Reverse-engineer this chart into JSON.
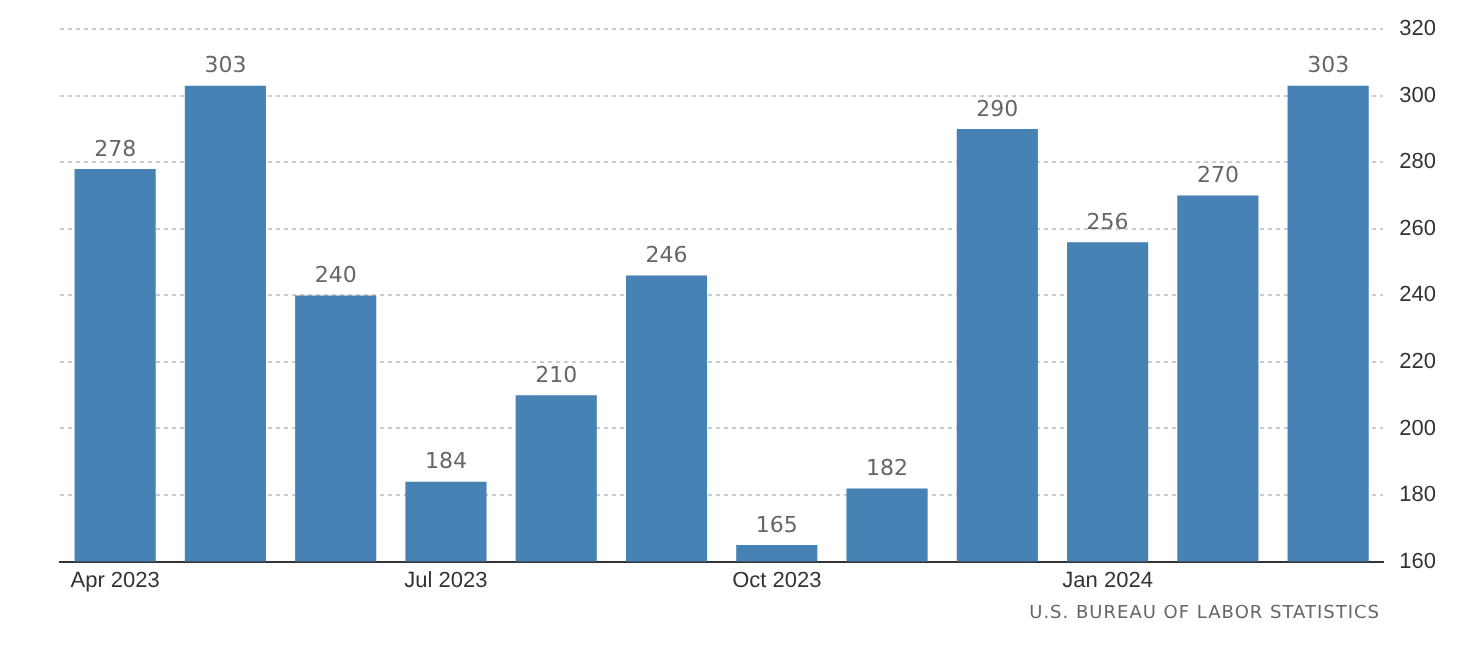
{
  "chart_data": {
    "type": "bar",
    "categories": [
      "Apr 2023",
      null,
      null,
      "Jul 2023",
      null,
      null,
      "Oct 2023",
      null,
      null,
      "Jan 2024",
      null,
      null
    ],
    "values": [
      278,
      303,
      240,
      184,
      210,
      246,
      165,
      182,
      290,
      256,
      270,
      303
    ],
    "color": "#4682b4",
    "ylim": [
      160,
      320
    ],
    "yticks": [
      160,
      180,
      200,
      220,
      240,
      260,
      280,
      300,
      320
    ],
    "grid": "y",
    "data_labels": true,
    "legend": false,
    "annotations": [
      "U.S. BUREAU OF LABOR STATISTICS"
    ]
  }
}
